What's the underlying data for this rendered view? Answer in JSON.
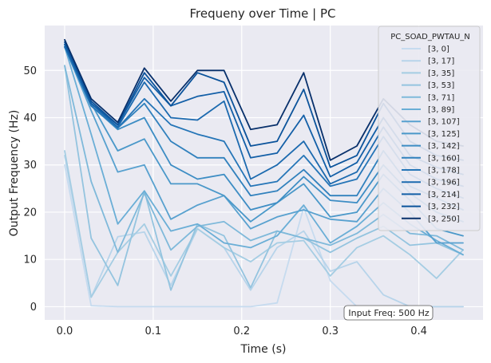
{
  "chart_data": {
    "type": "line",
    "title": "Frequeny over Time | PC",
    "xlabel": "Time (s)",
    "ylabel": "Output Frequency (Hz)",
    "xlim": [
      -0.0225,
      0.4725
    ],
    "ylim": [
      -2.8,
      59.5
    ],
    "xticks": [
      0.0,
      0.1,
      0.2,
      0.3,
      0.4
    ],
    "xtick_labels": [
      "0.0",
      "0.1",
      "0.2",
      "0.3",
      "0.4"
    ],
    "yticks": [
      0,
      10,
      20,
      30,
      40,
      50
    ],
    "ytick_labels": [
      "0",
      "10",
      "20",
      "30",
      "40",
      "50"
    ],
    "grid": true,
    "background": "#eaeaf2",
    "legend": {
      "title": "PC_SOAD_PWTAU_N",
      "placement": "top-right"
    },
    "annotation": "Input Freq: 500 Hz",
    "x": [
      0.0,
      0.03,
      0.06,
      0.09,
      0.12,
      0.15,
      0.18,
      0.21,
      0.24,
      0.27,
      0.3,
      0.33,
      0.36,
      0.39,
      0.42,
      0.45
    ],
    "series": [
      {
        "name": "[3, 0]",
        "color": "#c6dbef",
        "values": [
          30,
          0.2,
          0,
          0,
          0,
          0,
          0,
          0,
          0.8,
          21,
          5.5,
          0,
          0,
          0,
          0,
          0
        ]
      },
      {
        "name": "[3, 17]",
        "color": "#b7d4ea",
        "values": [
          32,
          2,
          14.8,
          15.8,
          4.5,
          16.5,
          12.5,
          3.5,
          12.5,
          16,
          7.5,
          9.5,
          2.5,
          0,
          0,
          0
        ]
      },
      {
        "name": "[3, 35]",
        "color": "#a5cde3",
        "values": [
          33,
          2,
          11.5,
          17.5,
          6.5,
          16.5,
          12.5,
          9.5,
          13.5,
          14,
          6.5,
          12.5,
          15,
          11,
          6,
          12
        ]
      },
      {
        "name": "[3, 53]",
        "color": "#94c4df",
        "values": [
          51,
          14.5,
          4.5,
          24.5,
          3.5,
          17.5,
          15,
          4,
          16,
          14.5,
          11.5,
          14.5,
          17,
          13,
          13.5,
          11
        ]
      },
      {
        "name": "[3, 71]",
        "color": "#7fb9da",
        "values": [
          51,
          26.5,
          11.5,
          24,
          12,
          17,
          18,
          14,
          16,
          14.5,
          13,
          15.5,
          19.5,
          15.5,
          15,
          12
        ]
      },
      {
        "name": "[3, 89]",
        "color": "#6aaed6",
        "values": [
          55,
          36.5,
          17.5,
          24.5,
          16,
          17.5,
          13.5,
          12.5,
          15,
          21.5,
          13.5,
          17,
          22,
          17.5,
          14,
          11
        ]
      },
      {
        "name": "[3, 107]",
        "color": "#58a1cf",
        "values": [
          55,
          41.5,
          28.5,
          30,
          18.5,
          21.5,
          23.5,
          16.5,
          19,
          20.5,
          18.5,
          18,
          25,
          20,
          13.5,
          13.5
        ]
      },
      {
        "name": "[3, 125]",
        "color": "#4a98c9",
        "values": [
          55,
          43,
          33,
          35.5,
          26,
          26,
          23.5,
          18,
          22,
          26,
          19,
          20,
          28,
          22.5,
          16.5,
          15
        ]
      },
      {
        "name": "[3, 142]",
        "color": "#3d8dc4",
        "values": [
          55,
          42.5,
          37.5,
          40,
          30,
          27,
          28,
          20.5,
          22,
          27.5,
          22.5,
          22,
          30,
          24,
          20,
          18
        ]
      },
      {
        "name": "[3, 160]",
        "color": "#3181bd",
        "values": [
          55,
          42.5,
          37.8,
          43,
          35,
          31.5,
          31.5,
          23.5,
          24.5,
          29,
          23.5,
          23.5,
          33,
          25.5,
          23,
          20.5
        ]
      },
      {
        "name": "[3, 178]",
        "color": "#2575b7",
        "values": [
          55,
          42.5,
          37.8,
          44,
          38.5,
          36.5,
          35,
          25.5,
          26.5,
          32,
          25.5,
          27,
          36,
          28,
          25,
          23
        ]
      },
      {
        "name": "[3, 196]",
        "color": "#1c6aaf",
        "values": [
          55.5,
          43,
          38,
          47.5,
          40,
          39.5,
          43.5,
          27,
          30,
          35,
          26,
          28.5,
          38,
          30,
          27,
          25.5
        ]
      },
      {
        "name": "[3, 214]",
        "color": "#135fa7",
        "values": [
          55.5,
          43,
          38.5,
          48.5,
          42.5,
          44.5,
          45.5,
          31.5,
          32.5,
          40.5,
          27.5,
          30.5,
          40,
          32,
          29.5,
          28
        ]
      },
      {
        "name": "[3, 232]",
        "color": "#0b539b",
        "values": [
          56,
          43.5,
          38.5,
          49.5,
          42.5,
          49.5,
          47.5,
          34,
          35,
          46,
          29.5,
          32,
          43,
          35,
          32,
          31
        ]
      },
      {
        "name": "[3, 250]",
        "color": "#08306b",
        "values": [
          56.5,
          44,
          39,
          50.5,
          43.5,
          50,
          50,
          37.5,
          38.5,
          49.5,
          31,
          34,
          44,
          38.5,
          35,
          34
        ]
      }
    ]
  }
}
